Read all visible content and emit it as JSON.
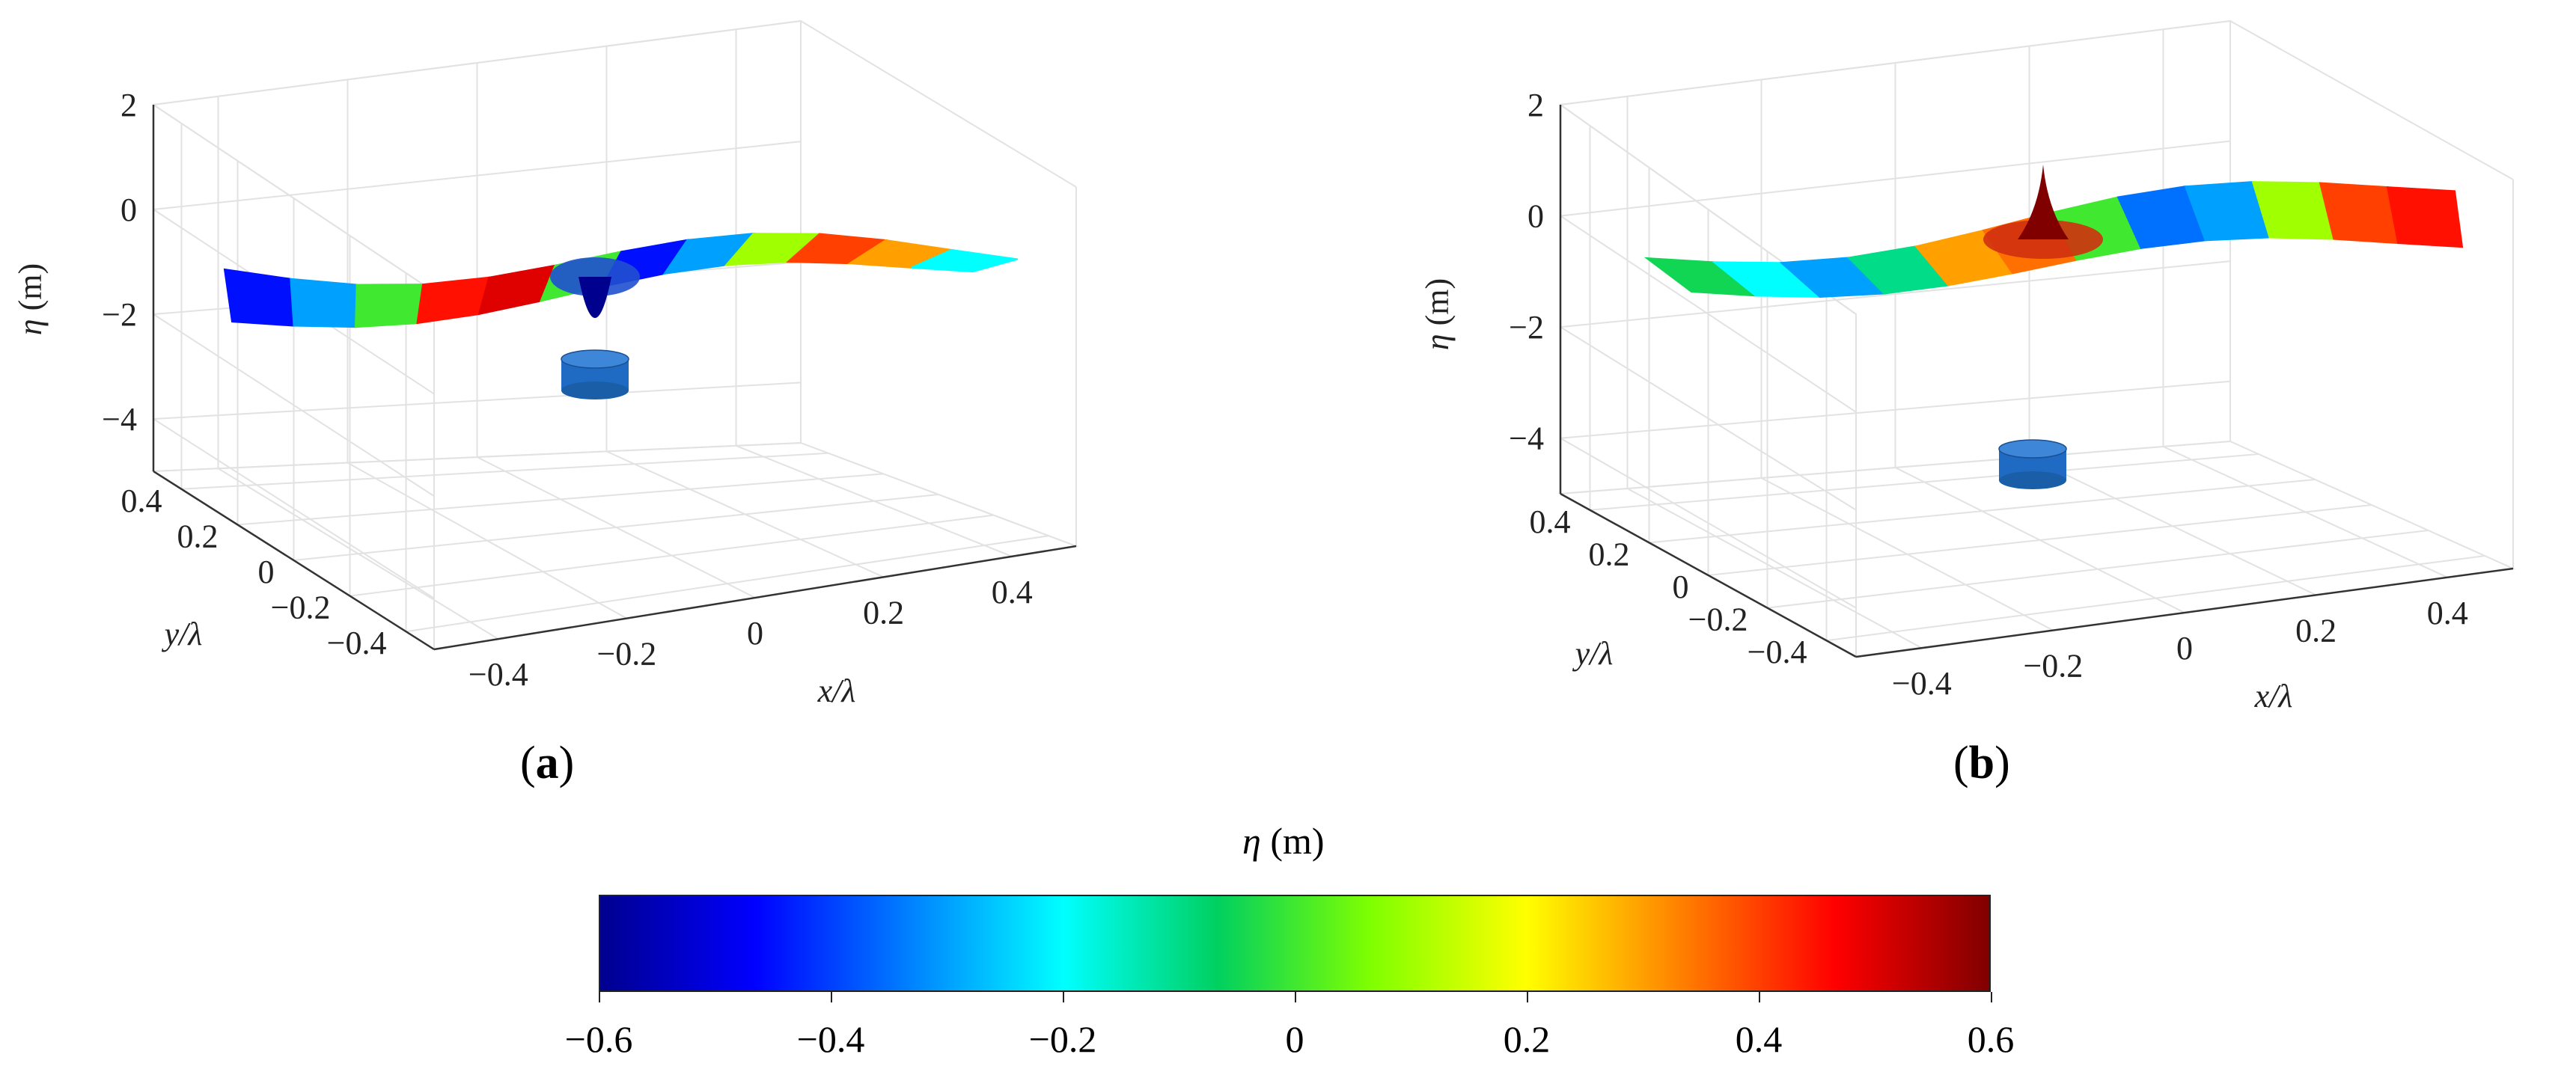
{
  "colorbar": {
    "title_symbol": "η",
    "title_unit": "(m)",
    "ticks": [
      "−0.6",
      "−0.4",
      "−0.2",
      "0",
      "0.2",
      "0.4",
      "0.6"
    ],
    "range": [
      -0.6,
      0.6
    ],
    "colormap": [
      "#00008f",
      "#0000ff",
      "#0080ff",
      "#00ffff",
      "#00d060",
      "#80ff00",
      "#ffff00",
      "#ff8000",
      "#ff0000",
      "#800000"
    ]
  },
  "chart_data": [
    {
      "type": "surface3d",
      "panel_label": "a",
      "zlabel_symbol": "η",
      "zlabel_unit": "(m)",
      "xlabel": "x/λ",
      "ylabel": "y/λ",
      "zlim": [
        -5,
        2
      ],
      "z_ticks": [
        "2",
        "0",
        "−2",
        "−4"
      ],
      "x_ticks": [
        "−0.4",
        "−0.2",
        "0",
        "0.2",
        "0.4"
      ],
      "y_ticks": [
        "0.4",
        "0.2",
        "0",
        "−0.2",
        "−0.4"
      ],
      "surface_description_values": {
        "wave_eta_m": [
          -0.45,
          -0.3,
          0.0,
          0.45,
          0.5,
          0.0,
          -0.45,
          -0.3,
          0.1,
          0.4,
          0.3,
          -0.2
        ],
        "center_feature_eta_m": -0.6
      }
    },
    {
      "type": "surface3d",
      "panel_label": "b",
      "zlabel_symbol": "η",
      "zlabel_unit": "(m)",
      "xlabel": "x/λ",
      "ylabel": "y/λ",
      "zlim": [
        -5,
        2
      ],
      "z_ticks": [
        "2",
        "0",
        "−2",
        "−4"
      ],
      "x_ticks": [
        "−0.4",
        "−0.2",
        "0",
        "0.2",
        "0.4"
      ],
      "y_ticks": [
        "0.4",
        "0.2",
        "0",
        "−0.2",
        "−0.4"
      ],
      "surface_description_values": {
        "wave_eta_m": [
          -0.05,
          -0.2,
          -0.3,
          -0.1,
          0.3,
          0.35,
          0.0,
          -0.35,
          -0.3,
          0.1,
          0.4,
          0.45
        ],
        "center_feature_eta_m": 0.6
      }
    }
  ]
}
